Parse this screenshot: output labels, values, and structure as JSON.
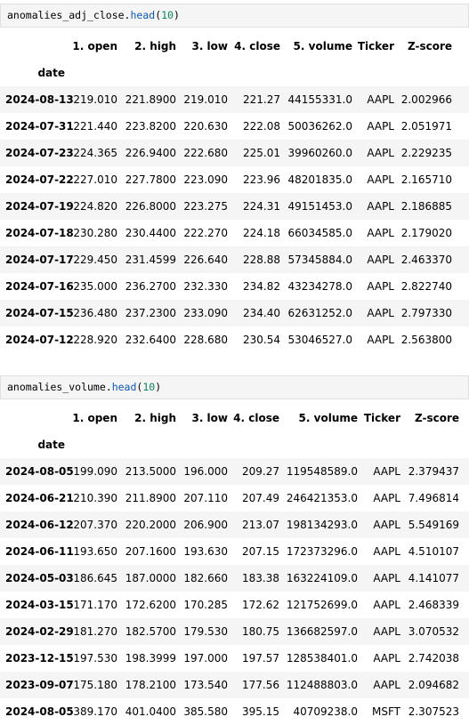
{
  "cells": [
    {
      "code": {
        "var": "anomalies_adj_close.",
        "fn": "head",
        "open": "(",
        "arg": "10",
        "close": ")"
      },
      "table": {
        "columns": [
          "1. open",
          "2. high",
          "3. low",
          "4. close",
          "5. volume",
          "Ticker",
          "Z-score"
        ],
        "index_name": "date",
        "rows": [
          [
            "2024-08-13",
            "219.010",
            "221.8900",
            "219.010",
            "221.27",
            "44155331.0",
            "AAPL",
            "2.002966"
          ],
          [
            "2024-07-31",
            "221.440",
            "223.8200",
            "220.630",
            "222.08",
            "50036262.0",
            "AAPL",
            "2.051971"
          ],
          [
            "2024-07-23",
            "224.365",
            "226.9400",
            "222.680",
            "225.01",
            "39960260.0",
            "AAPL",
            "2.229235"
          ],
          [
            "2024-07-22",
            "227.010",
            "227.7800",
            "223.090",
            "223.96",
            "48201835.0",
            "AAPL",
            "2.165710"
          ],
          [
            "2024-07-19",
            "224.820",
            "226.8000",
            "223.275",
            "224.31",
            "49151453.0",
            "AAPL",
            "2.186885"
          ],
          [
            "2024-07-18",
            "230.280",
            "230.4400",
            "222.270",
            "224.18",
            "66034585.0",
            "AAPL",
            "2.179020"
          ],
          [
            "2024-07-17",
            "229.450",
            "231.4599",
            "226.640",
            "228.88",
            "57345884.0",
            "AAPL",
            "2.463370"
          ],
          [
            "2024-07-16",
            "235.000",
            "236.2700",
            "232.330",
            "234.82",
            "43234278.0",
            "AAPL",
            "2.822740"
          ],
          [
            "2024-07-15",
            "236.480",
            "237.2300",
            "233.090",
            "234.40",
            "62631252.0",
            "AAPL",
            "2.797330"
          ],
          [
            "2024-07-12",
            "228.920",
            "232.6400",
            "228.680",
            "230.54",
            "53046527.0",
            "AAPL",
            "2.563800"
          ]
        ]
      }
    },
    {
      "code": {
        "var": "anomalies_volume.",
        "fn": "head",
        "open": "(",
        "arg": "10",
        "close": ")"
      },
      "table": {
        "columns": [
          "1. open",
          "2. high",
          "3. low",
          "4. close",
          "5. volume",
          "Ticker",
          "Z-score"
        ],
        "index_name": "date",
        "rows": [
          [
            "2024-08-05",
            "199.090",
            "213.5000",
            "196.000",
            "209.27",
            "119548589.0",
            "AAPL",
            "2.379437"
          ],
          [
            "2024-06-21",
            "210.390",
            "211.8900",
            "207.110",
            "207.49",
            "246421353.0",
            "AAPL",
            "7.496814"
          ],
          [
            "2024-06-12",
            "207.370",
            "220.2000",
            "206.900",
            "213.07",
            "198134293.0",
            "AAPL",
            "5.549169"
          ],
          [
            "2024-06-11",
            "193.650",
            "207.1600",
            "193.630",
            "207.15",
            "172373296.0",
            "AAPL",
            "4.510107"
          ],
          [
            "2024-05-03",
            "186.645",
            "187.0000",
            "182.660",
            "183.38",
            "163224109.0",
            "AAPL",
            "4.141077"
          ],
          [
            "2024-03-15",
            "171.170",
            "172.6200",
            "170.285",
            "172.62",
            "121752699.0",
            "AAPL",
            "2.468339"
          ],
          [
            "2024-02-29",
            "181.270",
            "182.5700",
            "179.530",
            "180.75",
            "136682597.0",
            "AAPL",
            "3.070532"
          ],
          [
            "2023-12-15",
            "197.530",
            "198.3999",
            "197.000",
            "197.57",
            "128538401.0",
            "AAPL",
            "2.742038"
          ],
          [
            "2023-09-07",
            "175.180",
            "178.2100",
            "173.540",
            "177.56",
            "112488803.0",
            "AAPL",
            "2.094682"
          ],
          [
            "2024-08-05",
            "389.170",
            "401.0400",
            "385.580",
            "395.15",
            "40709238.0",
            "MSFT",
            "2.307523"
          ]
        ]
      }
    }
  ]
}
